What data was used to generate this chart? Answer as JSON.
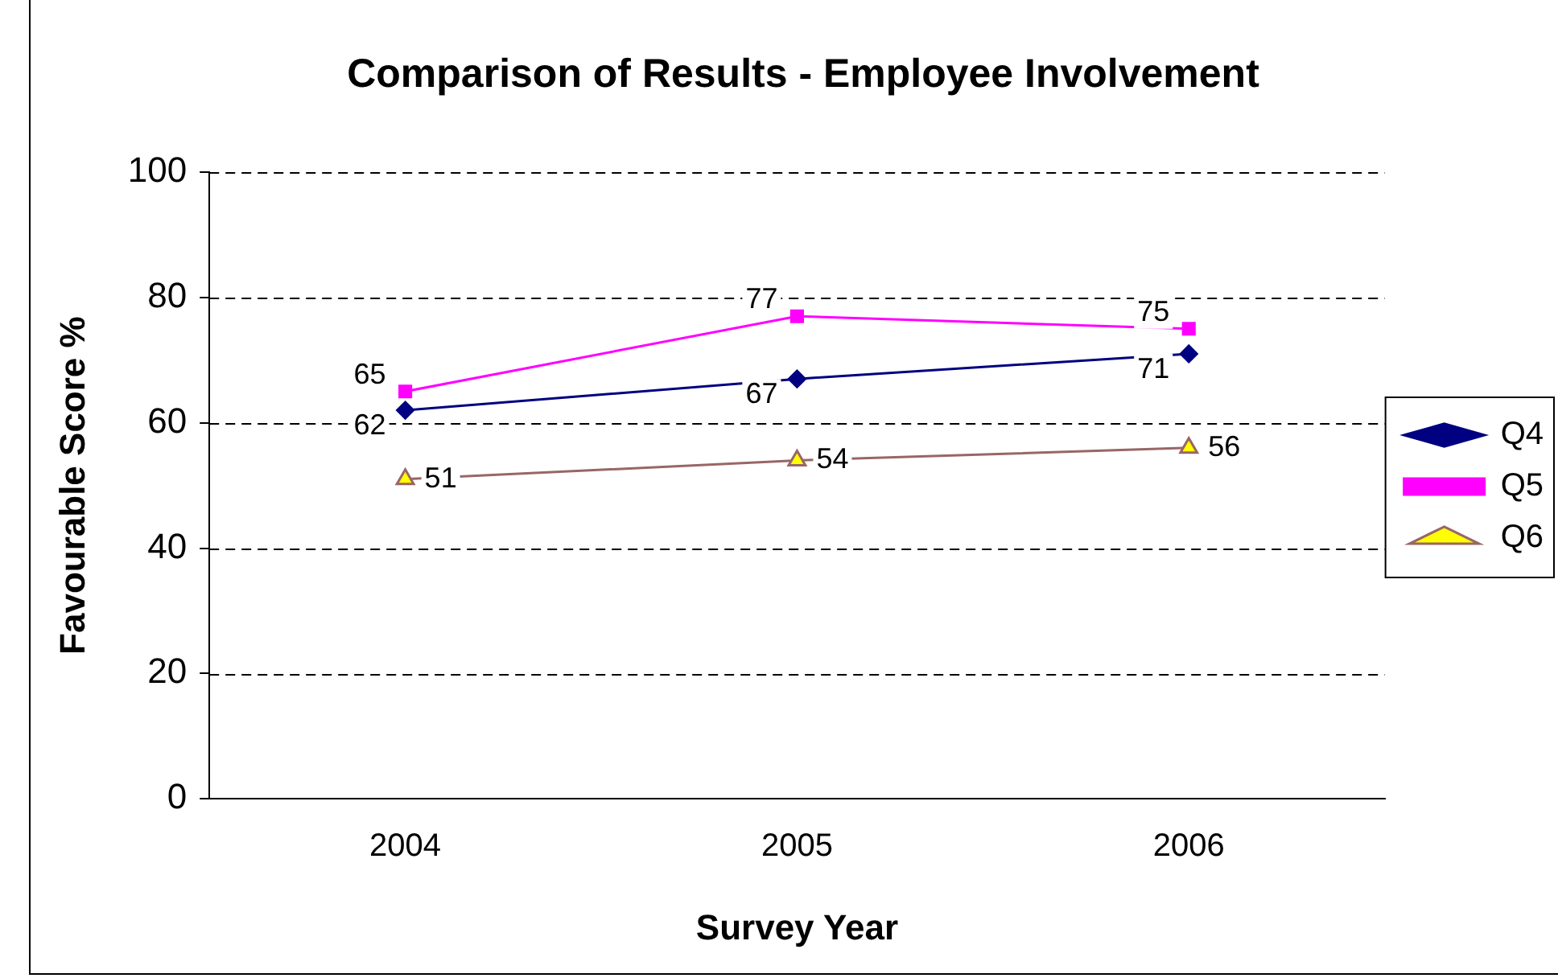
{
  "chart_data": {
    "type": "line",
    "title": "Comparison of Results - Employee Involvement",
    "xlabel": "Survey Year",
    "ylabel": "Favourable Score %",
    "categories": [
      "2004",
      "2005",
      "2006"
    ],
    "series": [
      {
        "name": "Q4",
        "color": "#000080",
        "marker": "diamond",
        "values": [
          62,
          67,
          71
        ]
      },
      {
        "name": "Q5",
        "color": "#ff00ff",
        "marker": "square",
        "values": [
          65,
          77,
          75
        ]
      },
      {
        "name": "Q6",
        "color": "#996666",
        "marker": "triangle",
        "values": [
          51,
          54,
          56
        ]
      }
    ],
    "ylim": [
      0,
      100
    ],
    "yticks": [
      0,
      20,
      40,
      60,
      80,
      100
    ],
    "grid": "y",
    "legend": "right",
    "data_labels": true,
    "line_style": "solid"
  }
}
